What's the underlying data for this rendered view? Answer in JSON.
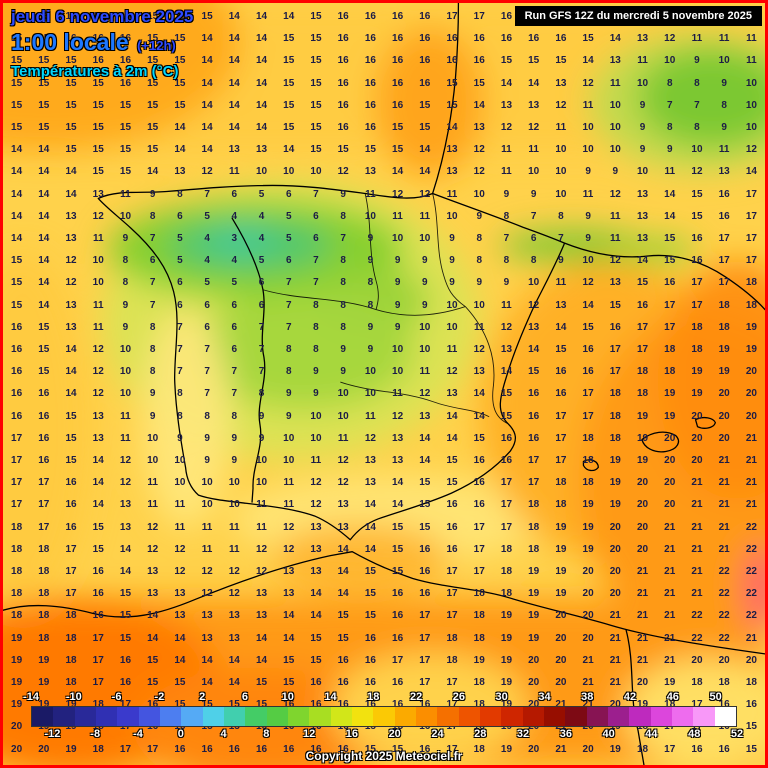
{
  "header": {
    "date_line": "jeudi 6 novembre 2025",
    "time_line": "1:00 locale",
    "offset": "(+12h)",
    "variable": "Températures à 2m (°C)",
    "run_info": "Run GFS 12Z du mercredi 5 novembre 2025"
  },
  "footer": {
    "copyright": "Copyright 2025 Meteociel.fr"
  },
  "colors": {
    "border": "#ff0000",
    "date_blue": "#2e4bff",
    "time_blue": "#1e78ff",
    "variable_cyan": "#00d8ff",
    "run_box_bg": "#000000",
    "run_box_text": "#ffffff",
    "number_color": "#1c1c46"
  },
  "scale": {
    "min": -14,
    "max": 52,
    "step": 2,
    "labels_top": [
      "-14",
      "-10",
      "-6",
      "-2",
      "2",
      "6",
      "10",
      "14",
      "18",
      "22",
      "26",
      "30",
      "34",
      "38",
      "42",
      "46",
      "50"
    ],
    "labels_bottom": [
      "-12",
      "-8",
      "-4",
      "0",
      "4",
      "8",
      "12",
      "16",
      "20",
      "24",
      "28",
      "32",
      "36",
      "40",
      "44",
      "48",
      "52"
    ],
    "colors": [
      "#1a1a66",
      "#22227f",
      "#292999",
      "#3030b3",
      "#3a3acc",
      "#4455e0",
      "#4d7ef0",
      "#55aaf5",
      "#4fd0e8",
      "#41cfae",
      "#44cc66",
      "#55cc44",
      "#7fd52e",
      "#a8de22",
      "#d2e619",
      "#f2e20f",
      "#fbc905",
      "#fbaa00",
      "#fb8e00",
      "#f57000",
      "#ee5400",
      "#e23a00",
      "#cf2600",
      "#b51900",
      "#970e00",
      "#7d0a14",
      "#871453",
      "#9c1f8e",
      "#be2abe",
      "#dc46dc",
      "#ee6cee",
      "#f898f8",
      "#ffffff"
    ]
  },
  "map_grid": {
    "rows": [
      "15 16 16 16 16 15 15 15 14 14 14 15 16 16 16 16 17 17 16 16 16 16 15 14 13 12 12 12",
      "15 15 16 16 16 15 15 14 14 14 15 15 16 16 16 16 16 16 16 16 16 15 14 13 12 11 11 11",
      "15 15 15 16 16 15 15 14 14 14 15 15 16 16 16 16 16 16 15 15 15 14 13 11 10 9 10 11",
      "15 15 15 15 16 15 15 14 14 14 15 15 16 16 16 16 15 15 14 14 13 12 11 10 8 8 9 10",
      "15 15 15 15 15 15 15 14 14 14 15 15 16 16 16 15 15 14 13 13 12 11 10 9 7 7 8 10",
      "15 15 15 15 15 15 14 14 14 14 15 15 16 16 15 15 14 13 12 12 11 10 10 9 8 8 9 10",
      "14 14 15 15 15 15 14 14 13 13 14 15 15 15 15 14 13 12 11 11 10 10 10 9 9 10 11 12",
      "14 14 14 15 15 14 13 12 11 10 10 10 12 13 14 14 13 12 11 10 10 9 9 10 11 12 13 14",
      "14 14 14 13 11 9 8 7 6 5 6 7 9 11 12 12 11 10 9 9 10 11 12 13 14 15 16 17",
      "14 14 13 12 10 8 6 5 4 4 5 6 8 10 11 11 10 9 8 7 8 9 11 13 14 15 16 17",
      "14 14 13 11 9 7 5 4 3 4 5 6 7 9 10 10 9 8 7 6 7 9 11 13 15 16 17 17",
      "15 14 12 10 8 6 5 4 4 5 6 7 8 9 9 9 9 8 8 8 9 10 12 14 15 16 17 17",
      "15 14 12 10 8 7 6 5 5 6 7 7 8 8 9 9 9 9 9 10 11 12 13 15 16 17 17 18",
      "15 14 13 11 9 7 6 6 6 6 7 8 8 8 9 9 10 10 11 12 13 14 15 16 17 17 18 18",
      "16 15 13 11 9 8 7 6 6 7 7 8 8 9 9 10 10 11 12 13 14 15 16 17 17 18 18 19",
      "16 15 14 12 10 8 7 7 6 7 8 8 9 9 10 10 11 12 13 14 15 16 17 17 18 18 19 19",
      "16 15 14 12 10 8 7 7 7 7 8 9 9 10 10 11 12 13 14 15 16 16 17 18 18 19 19 20",
      "16 16 14 12 10 9 8 7 7 8 9 9 10 10 11 12 13 14 15 16 16 17 18 18 19 19 20 20",
      "16 16 15 13 11 9 8 8 8 9 9 10 10 11 12 13 14 14 15 16 17 17 18 19 19 20 20 20",
      "17 16 15 13 11 10 9 9 9 9 10 10 11 12 13 14 14 15 16 16 17 18 18 19 20 20 20 21",
      "17 16 15 14 12 10 10 9 9 10 10 11 12 13 13 14 15 16 16 17 17 18 19 19 20 20 21 21",
      "17 17 16 14 12 11 10 10 10 10 11 12 12 13 14 15 15 16 17 17 18 18 19 20 20 21 21 21",
      "17 17 16 14 13 11 11 10 10 11 11 12 13 14 14 15 16 16 17 18 18 19 19 20 20 21 21 21",
      "18 17 16 15 13 12 11 11 11 11 12 13 13 14 15 15 16 17 17 18 19 19 20 20 21 21 21 22",
      "18 18 17 15 14 12 12 11 11 12 12 13 14 14 15 16 16 17 18 18 19 19 20 20 21 21 21 22",
      "18 18 17 16 14 13 12 12 12 12 13 13 14 15 15 16 17 17 18 19 19 20 20 21 21 21 22 22",
      "18 18 17 16 15 13 13 12 12 13 13 14 14 15 16 16 17 18 18 19 19 20 20 21 21 21 22 22",
      "18 18 18 16 15 14 13 13 13 13 14 14 15 15 16 17 17 18 19 19 20 20 21 21 21 22 22 22",
      "19 18 18 17 15 14 14 13 13 14 14 15 15 16 16 17 18 18 19 19 20 20 21 21 21 22 22 21",
      "19 19 18 17 16 15 14 14 14 14 15 15 16 16 17 17 18 19 19 20 20 21 21 21 21 20 20 20",
      "19 19 18 17 16 15 15 14 14 15 15 16 16 16 16 17 17 18 19 20 20 21 21 20 19 18 18 18",
      "19 19 19 18 17 16 15 15 15 15 16 16 16 16 16 16 17 18 19 20 21 21 20 19 18 17 16 16",
      "20 19 19 18 17 16 16 15 15 16 16 16 16 15 15 16 17 18 19 20 21 20 19 18 17 17 16 15",
      "20 20 19 18 17 17 16 16 16 16 16 16 16 15 15 16 17 18 19 20 21 20 19 18 17 16 16 15"
    ]
  }
}
